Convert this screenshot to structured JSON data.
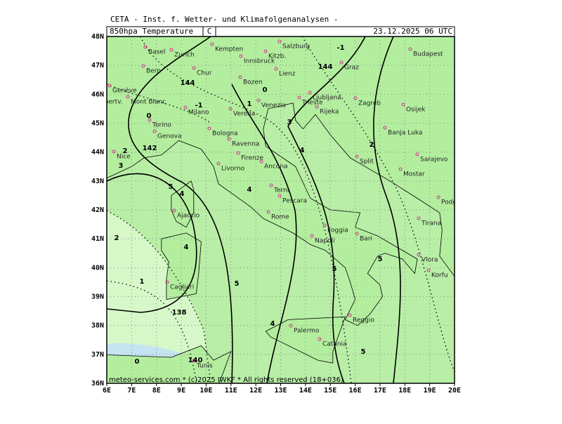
{
  "header": {
    "source": "CETA - Inst. f. Wetter- und Klimafolgenanalysen -",
    "field": "850hpa Temperature",
    "unit": "C",
    "valid": "23.12.2025 06 UTC"
  },
  "axes": {
    "x_labels": [
      "6E",
      "7E",
      "8E",
      "9E",
      "10E",
      "11E",
      "12E",
      "13E",
      "14E",
      "15E",
      "16E",
      "17E",
      "18E",
      "19E",
      "20E"
    ],
    "y_labels": [
      "48N",
      "47N",
      "46N",
      "45N",
      "44N",
      "43N",
      "42N",
      "41N",
      "40N",
      "39N",
      "38N",
      "37N",
      "36N"
    ]
  },
  "cities": [
    "Basel",
    "Zurich",
    "Kempten",
    "Salzburg",
    "Bern",
    "Chur",
    "Innsbruck",
    "Kitzb.",
    "Graz",
    "Budapest",
    "Genève",
    "Bozen",
    "Lienz",
    "Ljubljana",
    "Zagreb",
    "Albertv.",
    "Mont Blanc",
    "Milano",
    "Verona",
    "Venezia",
    "Trieste",
    "Rijeka",
    "Osijek",
    "Torino",
    "Bologna",
    "Banja Luka",
    "Genova",
    "Ravenna",
    "Nice",
    "Firenze",
    "Ancona",
    "Split",
    "Sarajevo",
    "Mostar",
    "Livorno",
    "Terni",
    "Pescara",
    "Podgorica",
    "Ajaccio",
    "Rome",
    "Foggia",
    "Tirana",
    "Bari",
    "Napoli",
    "Vlora",
    "Korfu",
    "Cagliari",
    "Palermo",
    "Reggio",
    "Catania",
    "Tunis"
  ],
  "contour_labels": [
    -1,
    -1,
    0,
    0,
    1,
    2,
    3,
    3,
    4,
    4,
    5,
    4,
    4,
    5,
    5,
    5,
    2,
    1,
    4,
    5,
    0,
    144,
    142,
    138,
    140,
    144,
    2
  ],
  "footer": "meteo-services.com * (c)2025 IWKF * All rights reserved (18+036)"
}
